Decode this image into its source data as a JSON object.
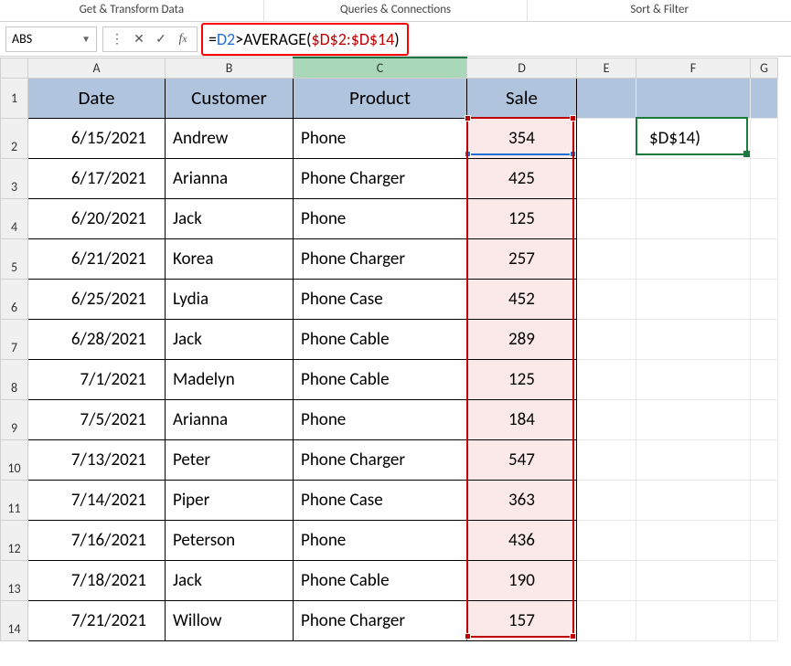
{
  "ribbon": {
    "groups": [
      "Get & Transform Data",
      "Queries & Connections",
      "Sort & Filter"
    ]
  },
  "namebox": {
    "value": "ABS"
  },
  "formula": {
    "eq": "=",
    "ref1": "D2",
    "op": ">",
    "fn": "AVERAGE",
    "open": "(",
    "ref2": "$D$2:$D$14",
    "close": ")"
  },
  "columns": {
    "letters": [
      "A",
      "B",
      "C",
      "D",
      "E",
      "F",
      "G"
    ],
    "widths": [
      150,
      140,
      190,
      120,
      65,
      125,
      30
    ],
    "selected_index": 2
  },
  "headers": [
    "Date",
    "Customer",
    "Product",
    "Sale"
  ],
  "rows": [
    {
      "n": "1"
    },
    {
      "n": "2",
      "date": "6/15/2021",
      "customer": "Andrew",
      "product": "Phone",
      "sale": "354"
    },
    {
      "n": "3",
      "date": "6/17/2021",
      "customer": "Arianna",
      "product": "Phone Charger",
      "sale": "425"
    },
    {
      "n": "4",
      "date": "6/20/2021",
      "customer": "Jack",
      "product": "Phone",
      "sale": "125"
    },
    {
      "n": "5",
      "date": "6/21/2021",
      "customer": "Korea",
      "product": "Phone Charger",
      "sale": "257"
    },
    {
      "n": "6",
      "date": "6/25/2021",
      "customer": "Lydia",
      "product": "Phone Case",
      "sale": "452"
    },
    {
      "n": "7",
      "date": "6/28/2021",
      "customer": "Jack",
      "product": "Phone Cable",
      "sale": "289"
    },
    {
      "n": "8",
      "date": "7/1/2021",
      "customer": "Madelyn",
      "product": "Phone Cable",
      "sale": "125"
    },
    {
      "n": "9",
      "date": "7/5/2021",
      "customer": "Arianna",
      "product": "Phone",
      "sale": "184"
    },
    {
      "n": "10",
      "date": "7/13/2021",
      "customer": "Peter",
      "product": "Phone Charger",
      "sale": "547"
    },
    {
      "n": "11",
      "date": "7/14/2021",
      "customer": "Piper",
      "product": "Phone Case",
      "sale": "363"
    },
    {
      "n": "12",
      "date": "7/16/2021",
      "customer": "Peterson",
      "product": "Phone",
      "sale": "436"
    },
    {
      "n": "13",
      "date": "7/18/2021",
      "customer": "Jack",
      "product": "Phone Cable",
      "sale": "190"
    },
    {
      "n": "14",
      "date": "7/21/2021",
      "customer": "Willow",
      "product": "Phone Charger",
      "sale": "157"
    }
  ],
  "f2_display": "$D$14)",
  "colors": {
    "header_fill": "#b0c4de",
    "sale_fill": "#fbe9e9",
    "sel_blue": "#1f6fd6",
    "sel_red": "#c00000",
    "sel_green": "#1a7b3a",
    "col_selected": "#a8d8b8"
  },
  "layout": {
    "row_header_h": 22,
    "hdr_row_h": 44,
    "data_row_h": 44,
    "rowhdr_w": 30
  }
}
